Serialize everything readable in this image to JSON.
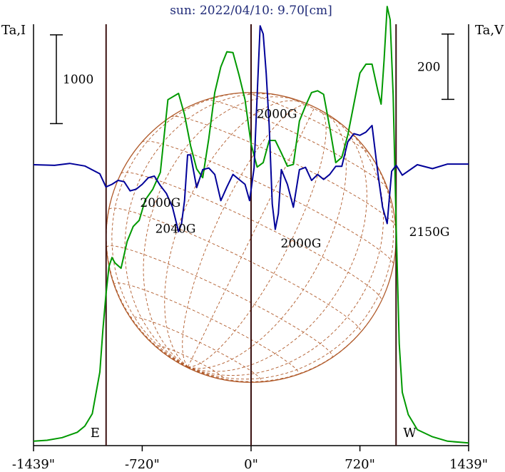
{
  "title": "sun: 2022/04/10: 9.70[cm]",
  "left_axis_label": "Ta,I",
  "right_axis_label": "Ta,V",
  "scale_bars": {
    "left": "1000",
    "right": "200"
  },
  "limb_labels": {
    "east": "E",
    "west": "W"
  },
  "colors": {
    "stokes_I": "#009900",
    "stokes_V": "#000099",
    "solar_grid": "#b05a2a",
    "frame": "#000000",
    "title": "#1f2a78"
  },
  "chart_data": {
    "type": "line",
    "title": "sun: 2022/04/10: 9.70[cm]",
    "x_unit": "arcsec",
    "xlim": [
      -1439,
      1439
    ],
    "x_ticks": [
      -1439,
      -720,
      0,
      720,
      1439
    ],
    "x_tick_labels": [
      "-1439\"",
      "-720\"",
      "0\"",
      "720\"",
      "1439\""
    ],
    "vertical_markers": [
      {
        "x": -959,
        "label": "E"
      },
      {
        "x": 0,
        "label": ""
      },
      {
        "x": 959,
        "label": "W"
      }
    ],
    "series": [
      {
        "name": "Ta,I",
        "color": "#009900",
        "scale_bar": 1000,
        "ylim": [
          -750,
          4000
        ],
        "x": [
          -1439,
          -1350,
          -1250,
          -1150,
          -1100,
          -1050,
          -1000,
          -980,
          -960,
          -940,
          -920,
          -900,
          -860,
          -820,
          -780,
          -740,
          -700,
          -650,
          -600,
          -550,
          -480,
          -440,
          -400,
          -360,
          -320,
          -280,
          -240,
          -200,
          -160,
          -120,
          -80,
          -40,
          0,
          40,
          80,
          120,
          160,
          200,
          240,
          280,
          320,
          360,
          400,
          440,
          480,
          520,
          560,
          600,
          640,
          680,
          720,
          760,
          800,
          840,
          860,
          880,
          900,
          920,
          940,
          960,
          980,
          1000,
          1040,
          1100,
          1200,
          1300,
          1439
        ],
        "y": [
          -700,
          -690,
          -660,
          -600,
          -530,
          -390,
          80,
          560,
          950,
          1270,
          1370,
          1310,
          1250,
          1550,
          1720,
          1790,
          2020,
          2140,
          2330,
          3150,
          3220,
          2980,
          2630,
          2370,
          2270,
          2710,
          3230,
          3520,
          3690,
          3680,
          3430,
          3150,
          2650,
          2390,
          2440,
          2690,
          2690,
          2550,
          2400,
          2420,
          2910,
          3080,
          3230,
          3250,
          3210,
          2840,
          2440,
          2500,
          2750,
          3100,
          3450,
          3550,
          3550,
          3240,
          3100,
          3600,
          4200,
          4050,
          3200,
          1700,
          400,
          -150,
          -400,
          -570,
          -650,
          -700,
          -720
        ]
      },
      {
        "name": "Ta,V",
        "color": "#000099",
        "scale_bar": 200,
        "ylim": [
          -870,
          420
        ],
        "x": [
          -1439,
          -1300,
          -1200,
          -1100,
          -1000,
          -960,
          -920,
          -880,
          -840,
          -800,
          -760,
          -720,
          -680,
          -640,
          -600,
          -560,
          -520,
          -480,
          -460,
          -440,
          -420,
          -400,
          -360,
          -320,
          -280,
          -240,
          -200,
          -160,
          -120,
          -80,
          -40,
          -10,
          20,
          40,
          60,
          80,
          100,
          120,
          140,
          160,
          180,
          200,
          240,
          280,
          320,
          360,
          400,
          440,
          480,
          520,
          560,
          600,
          640,
          680,
          720,
          760,
          800,
          840,
          870,
          900,
          930,
          960,
          1000,
          1100,
          1200,
          1300,
          1439
        ],
        "y": [
          -10,
          -12,
          -6,
          -14,
          -38,
          -78,
          -70,
          -58,
          -62,
          -90,
          -85,
          -70,
          -50,
          -45,
          -74,
          -98,
          -140,
          -215,
          -190,
          -120,
          20,
          20,
          -80,
          -25,
          -20,
          -40,
          -120,
          -78,
          -40,
          -55,
          -70,
          -120,
          -20,
          200,
          415,
          390,
          270,
          110,
          -130,
          -208,
          -160,
          -25,
          -70,
          -140,
          -25,
          -18,
          -58,
          -40,
          -55,
          -40,
          -15,
          -15,
          60,
          85,
          80,
          90,
          110,
          -40,
          -140,
          -190,
          -30,
          -12,
          -42,
          -10,
          -22,
          -8,
          -8
        ]
      }
    ],
    "annotations": [
      {
        "text": "2000G",
        "x": 170,
        "y": 2990,
        "series": "Ta,I"
      },
      {
        "text": "2000G",
        "x": -600,
        "y": 1990,
        "series": "Ta,I"
      },
      {
        "text": "2040G",
        "x": -500,
        "y": -205,
        "series": "Ta,V"
      },
      {
        "text": "2000G",
        "x": 330,
        "y": -250,
        "series": "Ta,V"
      },
      {
        "text": "2150G",
        "x": 1180,
        "y": -215,
        "series": "Ta,V"
      }
    ]
  }
}
